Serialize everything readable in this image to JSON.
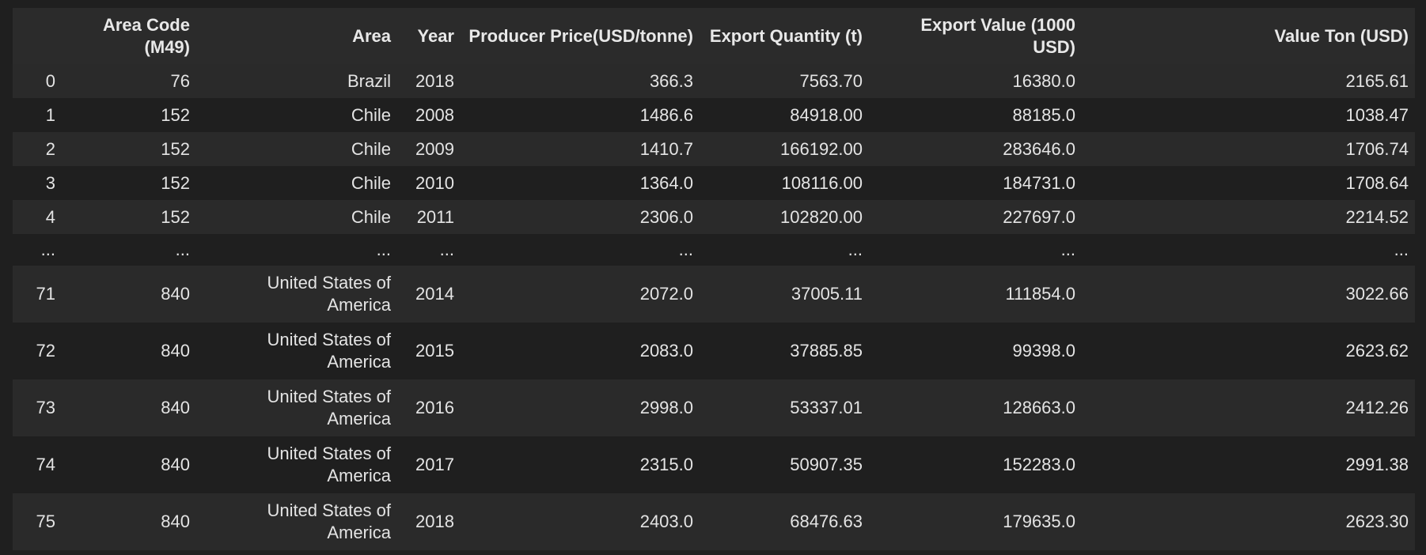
{
  "table": {
    "columns": [
      "",
      "Area Code (M49)",
      "Area",
      "Year",
      "Producer Price(USD/tonne)",
      "Export Quantity (t)",
      "Export Value (1000 USD)",
      "Value Ton (USD)"
    ],
    "rows": [
      [
        "0",
        "76",
        "Brazil",
        "2018",
        "366.3",
        "7563.70",
        "16380.0",
        "2165.61"
      ],
      [
        "1",
        "152",
        "Chile",
        "2008",
        "1486.6",
        "84918.00",
        "88185.0",
        "1038.47"
      ],
      [
        "2",
        "152",
        "Chile",
        "2009",
        "1410.7",
        "166192.00",
        "283646.0",
        "1706.74"
      ],
      [
        "3",
        "152",
        "Chile",
        "2010",
        "1364.0",
        "108116.00",
        "184731.0",
        "1708.64"
      ],
      [
        "4",
        "152",
        "Chile",
        "2011",
        "2306.0",
        "102820.00",
        "227697.0",
        "2214.52"
      ],
      [
        "...",
        "...",
        "...",
        "...",
        "...",
        "...",
        "...",
        "..."
      ],
      [
        "71",
        "840",
        "United States of America",
        "2014",
        "2072.0",
        "37005.11",
        "111854.0",
        "3022.66"
      ],
      [
        "72",
        "840",
        "United States of America",
        "2015",
        "2083.0",
        "37885.85",
        "99398.0",
        "2623.62"
      ],
      [
        "73",
        "840",
        "United States of America",
        "2016",
        "2998.0",
        "53337.01",
        "128663.0",
        "2412.26"
      ],
      [
        "74",
        "840",
        "United States of America",
        "2017",
        "2315.0",
        "50907.35",
        "152283.0",
        "2991.38"
      ],
      [
        "75",
        "840",
        "United States of America",
        "2018",
        "2403.0",
        "68476.63",
        "179635.0",
        "2623.30"
      ]
    ]
  },
  "colors": {
    "background": "#1f1f1f",
    "header_background": "#2b2b2b",
    "stripe": "#2a2a2a",
    "text": "#e4e4e4"
  }
}
